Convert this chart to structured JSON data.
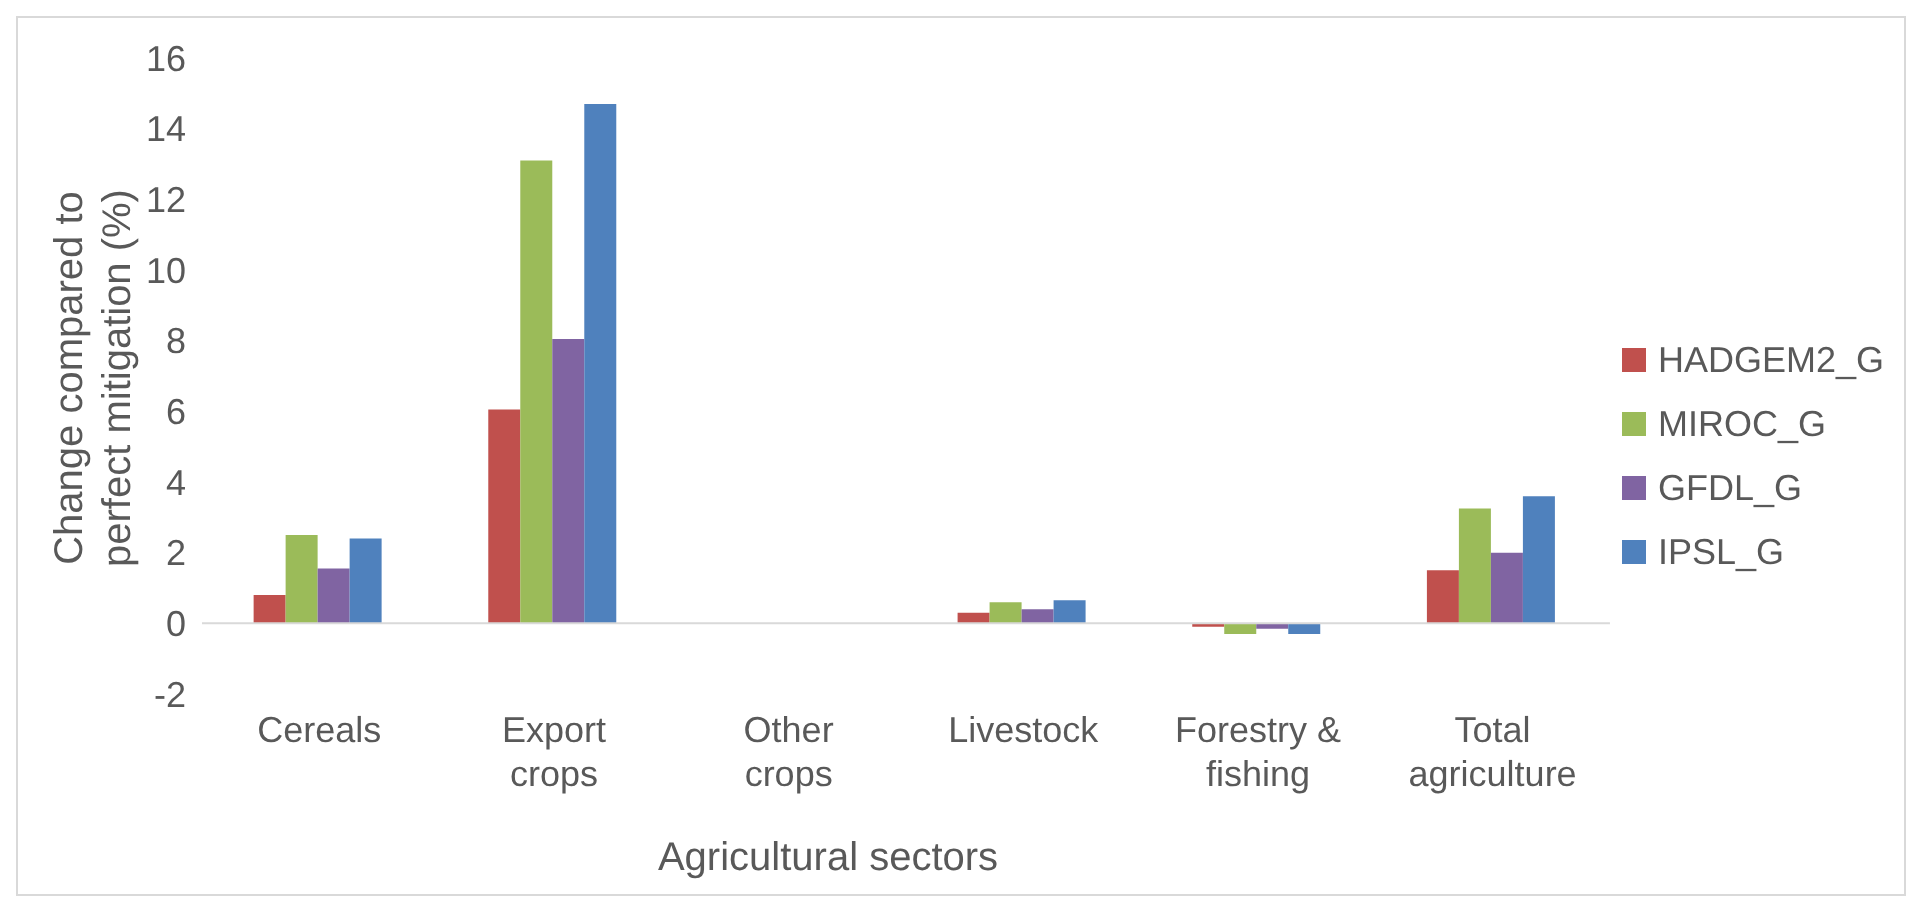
{
  "chart_data": {
    "type": "bar",
    "xlabel": "Agricultural sectors",
    "ylabel": "Change compared to perfect mitigation (%)",
    "categories": [
      "Cereals",
      "Export crops",
      "Other crops",
      "Livestock",
      "Forestry & fishing",
      "Total agriculture"
    ],
    "series": [
      {
        "name": "HADGEM2_G",
        "color": "#c0504d",
        "values": [
          0.8,
          6.05,
          null,
          0.3,
          -0.1,
          1.5
        ]
      },
      {
        "name": "MIROC_G",
        "color": "#9bbb59",
        "values": [
          2.5,
          13.1,
          null,
          0.6,
          -0.3,
          3.25
        ]
      },
      {
        "name": "GFDL_G",
        "color": "#8064a2",
        "values": [
          1.55,
          8.05,
          null,
          0.4,
          -0.15,
          2.0
        ]
      },
      {
        "name": "IPSL_G",
        "color": "#4f81bd",
        "values": [
          2.4,
          14.7,
          null,
          0.65,
          -0.3,
          3.6
        ]
      }
    ],
    "ylim": [
      -2,
      16
    ],
    "yticks": [
      -2,
      0,
      2,
      4,
      6,
      8,
      10,
      12,
      14,
      16
    ],
    "grid": false,
    "legend": "right"
  }
}
